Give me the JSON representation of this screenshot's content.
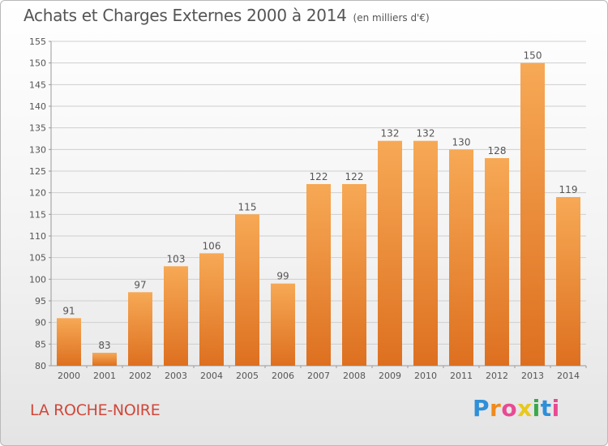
{
  "title": "Achats et Charges Externes 2000 à 2014",
  "unit_note": "(en milliers d'€)",
  "commune": "LA ROCHE-NOIRE",
  "brand": {
    "letters": [
      "P",
      "r",
      "o",
      "x",
      "i",
      "t",
      "i"
    ],
    "colors": [
      "#2f8fd8",
      "#f08a1c",
      "#e84a93",
      "#e8c81c",
      "#3aa84a",
      "#2f8fd8",
      "#e84a93"
    ]
  },
  "colors": {
    "bar_top": "#f7a955",
    "bar_bottom": "#dd7020",
    "grid": "#cfcfcf",
    "text": "#555555"
  },
  "chart_data": {
    "type": "bar",
    "categories": [
      "2000",
      "2001",
      "2002",
      "2003",
      "2004",
      "2005",
      "2006",
      "2007",
      "2008",
      "2009",
      "2010",
      "2011",
      "2012",
      "2013",
      "2014"
    ],
    "values": [
      91,
      83,
      97,
      103,
      106,
      115,
      99,
      122,
      122,
      132,
      132,
      130,
      128,
      150,
      119
    ],
    "ylim": [
      80,
      155
    ],
    "yticks": [
      80,
      85,
      90,
      95,
      100,
      105,
      110,
      115,
      120,
      125,
      130,
      135,
      140,
      145,
      150,
      155
    ],
    "grid": true,
    "data_labels": true
  }
}
